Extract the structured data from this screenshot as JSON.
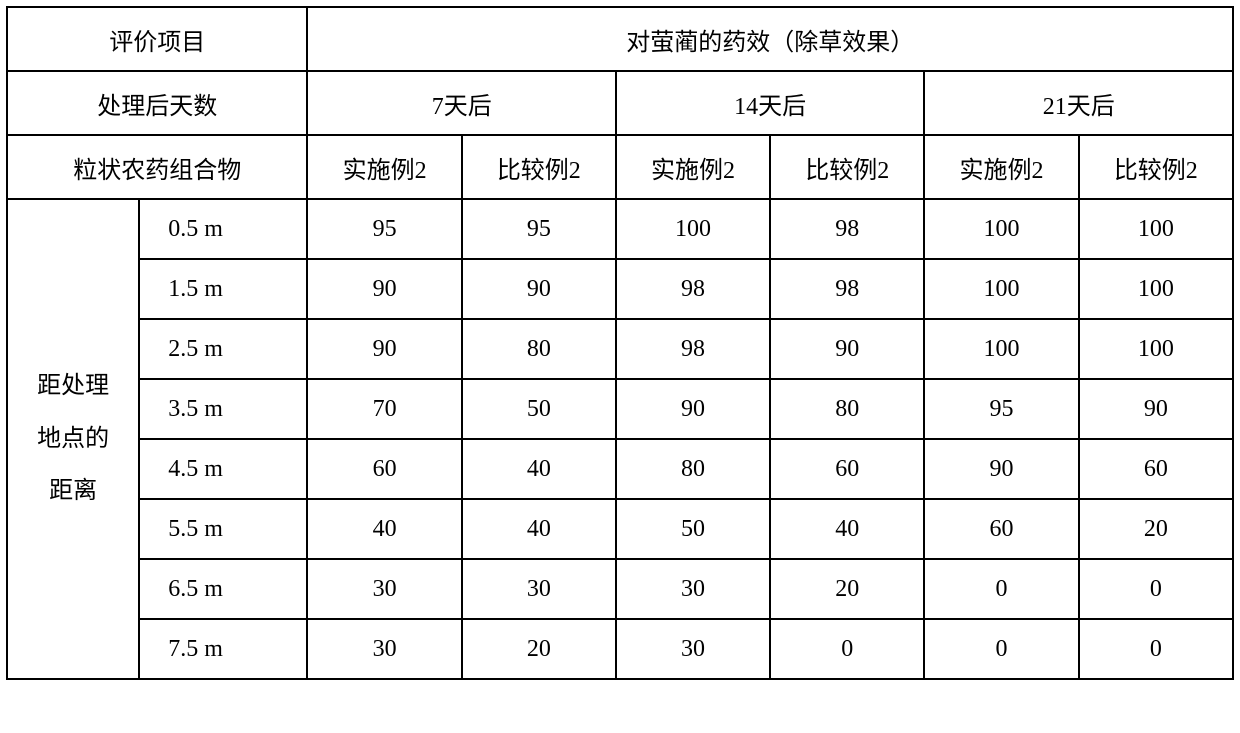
{
  "table": {
    "type": "table",
    "background_color": "#ffffff",
    "border_color": "#000000",
    "font_size": 24,
    "header": {
      "evaluation_item": "评价项目",
      "efficacy_title": "对萤蔺的药效（除草效果）",
      "days_after_treatment": "处理后天数",
      "day_periods": [
        "7天后",
        "14天后",
        "21天后"
      ],
      "composition_label": "粒状农药组合物",
      "column_labels": {
        "example": "实施例2",
        "comparative": "比较例2"
      }
    },
    "row_group_label": "距处理地点的距离",
    "columns": [
      "距离",
      "实施例2(7天)",
      "比较例2(7天)",
      "实施例2(14天)",
      "比较例2(14天)",
      "实施例2(21天)",
      "比较例2(21天)"
    ],
    "rows": [
      {
        "distance": "0.5 m",
        "values": [
          95,
          95,
          100,
          98,
          100,
          100
        ]
      },
      {
        "distance": "1.5 m",
        "values": [
          90,
          90,
          98,
          98,
          100,
          100
        ]
      },
      {
        "distance": "2.5 m",
        "values": [
          90,
          80,
          98,
          90,
          100,
          100
        ]
      },
      {
        "distance": "3.5 m",
        "values": [
          70,
          50,
          90,
          80,
          95,
          90
        ]
      },
      {
        "distance": "4.5 m",
        "values": [
          60,
          40,
          80,
          60,
          90,
          60
        ]
      },
      {
        "distance": "5.5 m",
        "values": [
          40,
          40,
          50,
          40,
          60,
          20
        ]
      },
      {
        "distance": "6.5 m",
        "values": [
          30,
          30,
          30,
          20,
          0,
          0
        ]
      },
      {
        "distance": "7.5 m",
        "values": [
          30,
          20,
          30,
          0,
          0,
          0
        ]
      }
    ]
  }
}
